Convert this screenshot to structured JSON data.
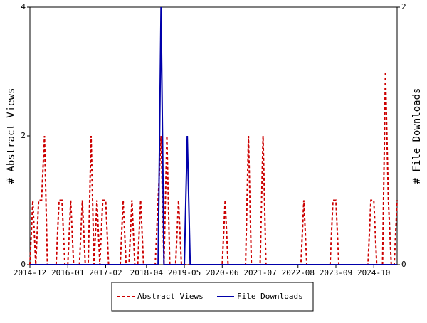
{
  "chart_data": {
    "type": "line",
    "categories": [
      "2014-12",
      null,
      null,
      null,
      null,
      null,
      null,
      null,
      null,
      null,
      null,
      null,
      null,
      "2016-01",
      null,
      null,
      null,
      null,
      null,
      null,
      null,
      null,
      null,
      null,
      null,
      null,
      "2017-02",
      null,
      null,
      null,
      null,
      null,
      null,
      null,
      null,
      null,
      null,
      null,
      null,
      null,
      "2018-04",
      null,
      null,
      null,
      null,
      null,
      null,
      null,
      null,
      null,
      null,
      null,
      null,
      "2019-05",
      null,
      null,
      null,
      null,
      null,
      null,
      null,
      null,
      null,
      null,
      null,
      null,
      "2020-06",
      null,
      null,
      null,
      null,
      null,
      null,
      null,
      null,
      null,
      null,
      null,
      null,
      "2021-07",
      null,
      null,
      null,
      null,
      null,
      null,
      null,
      null,
      null,
      null,
      null,
      null,
      "2022-08",
      null,
      null,
      null,
      null,
      null,
      null,
      null,
      null,
      null,
      null,
      null,
      null,
      "2023-09",
      null,
      null,
      null,
      null,
      null,
      null,
      null,
      null,
      null,
      null,
      null,
      null,
      "2024-10",
      null,
      null,
      null,
      null,
      null,
      null,
      null,
      null
    ],
    "series": [
      {
        "name": "Abstract Views",
        "color": "#cc0000",
        "dashed": true,
        "values": [
          0,
          1,
          0,
          1,
          1,
          2,
          0,
          0,
          0,
          0,
          1,
          1,
          0,
          0,
          1,
          0,
          0,
          0,
          1,
          0,
          0,
          2,
          0,
          1,
          0,
          1,
          1,
          0,
          0,
          0,
          0,
          0,
          1,
          0,
          0,
          1,
          0,
          0,
          1,
          0,
          0,
          0,
          0,
          0,
          1,
          2,
          0,
          2,
          0,
          0,
          0,
          1,
          0,
          0,
          0,
          0,
          0,
          0,
          0,
          0,
          0,
          0,
          0,
          0,
          0,
          0,
          0,
          1,
          0,
          0,
          0,
          0,
          0,
          0,
          0,
          2,
          0,
          0,
          0,
          0,
          2,
          0,
          0,
          0,
          0,
          0,
          0,
          0,
          0,
          0,
          0,
          0,
          0,
          0,
          1,
          0,
          0,
          0,
          0,
          0,
          0,
          0,
          0,
          0,
          1,
          1,
          0,
          0,
          0,
          0,
          0,
          0,
          0,
          0,
          0,
          0,
          0,
          1,
          1,
          0,
          0,
          0,
          3,
          1,
          0,
          0,
          1
        ]
      },
      {
        "name": "File Downloads",
        "color": "#0000aa",
        "dashed": false,
        "axis": "y2",
        "values": [
          0,
          0,
          0,
          0,
          0,
          0,
          0,
          0,
          0,
          0,
          0,
          0,
          0,
          0,
          0,
          0,
          0,
          0,
          0,
          0,
          0,
          0,
          0,
          0,
          0,
          0,
          0,
          0,
          0,
          0,
          0,
          0,
          0,
          0,
          0,
          0,
          0,
          0,
          0,
          0,
          0,
          0,
          0,
          0,
          0,
          2,
          0,
          0,
          0,
          0,
          0,
          0,
          0,
          0,
          1,
          0,
          0,
          0,
          0,
          0,
          0,
          0,
          0,
          0,
          0,
          0,
          0,
          0,
          0,
          0,
          0,
          0,
          0,
          0,
          0,
          0,
          0,
          0,
          0,
          0,
          0,
          0,
          0,
          0,
          0,
          0,
          0,
          0,
          0,
          0,
          0,
          0,
          0,
          0,
          0,
          0,
          0,
          0,
          0,
          0,
          0,
          0,
          0,
          0,
          0,
          0,
          0,
          0,
          0,
          0,
          0,
          0,
          0,
          0,
          0,
          0,
          0,
          0,
          0,
          0,
          0,
          0,
          0,
          0,
          0,
          0,
          0
        ]
      }
    ],
    "ylabel": "# Abstract Views",
    "y2label": "# File Downloads",
    "ylim": [
      0,
      4
    ],
    "yticks": [
      0,
      2,
      4
    ],
    "y2lim": [
      0,
      2
    ],
    "y2ticks": [
      0,
      2
    ],
    "legend": "bottom"
  }
}
